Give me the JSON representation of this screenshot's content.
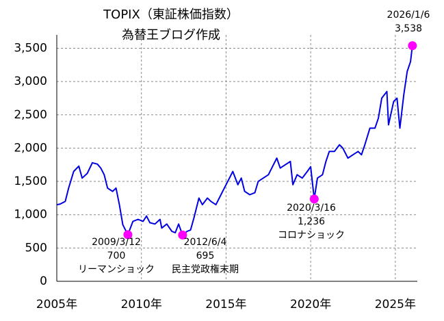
{
  "chart_data": {
    "type": "line",
    "title": "TOPIX（東証株価指数）",
    "subtitle": "為替王ブログ作成",
    "x": [
      2005.0,
      2005.2,
      2005.5,
      2005.7,
      2006.0,
      2006.3,
      2006.5,
      2006.8,
      2007.1,
      2007.4,
      2007.6,
      2007.8,
      2008.0,
      2008.3,
      2008.5,
      2008.7,
      2008.9,
      2009.2,
      2009.5,
      2009.8,
      2010.1,
      2010.3,
      2010.5,
      2010.8,
      2011.1,
      2011.2,
      2011.5,
      2011.8,
      2012.0,
      2012.2,
      2012.43,
      2012.7,
      2012.9,
      2013.1,
      2013.4,
      2013.6,
      2013.9,
      2014.1,
      2014.4,
      2014.7,
      2014.9,
      2015.2,
      2015.4,
      2015.7,
      2015.9,
      2016.1,
      2016.4,
      2016.7,
      2016.9,
      2017.2,
      2017.5,
      2017.8,
      2018.0,
      2018.2,
      2018.5,
      2018.8,
      2018.95,
      2019.2,
      2019.5,
      2019.8,
      2020.0,
      2020.21,
      2020.4,
      2020.7,
      2020.9,
      2021.1,
      2021.4,
      2021.7,
      2021.9,
      2022.2,
      2022.5,
      2022.8,
      2023.0,
      2023.2,
      2023.5,
      2023.8,
      2024.0,
      2024.2,
      2024.5,
      2024.6,
      2024.9,
      2025.1,
      2025.27,
      2025.5,
      2025.7,
      2025.9,
      2026.01
    ],
    "series": [
      {
        "name": "TOPIX",
        "color": "#0000e0",
        "values": [
          1150,
          1160,
          1200,
          1400,
          1650,
          1730,
          1550,
          1620,
          1780,
          1760,
          1700,
          1600,
          1400,
          1350,
          1400,
          1150,
          850,
          700,
          900,
          930,
          900,
          980,
          880,
          860,
          930,
          800,
          860,
          750,
          730,
          860,
          695,
          750,
          770,
          950,
          1250,
          1150,
          1250,
          1200,
          1150,
          1300,
          1400,
          1550,
          1650,
          1450,
          1550,
          1350,
          1300,
          1330,
          1500,
          1550,
          1600,
          1750,
          1850,
          1700,
          1750,
          1800,
          1450,
          1600,
          1550,
          1650,
          1720,
          1236,
          1550,
          1600,
          1800,
          1950,
          1950,
          2050,
          2000,
          1850,
          1900,
          1950,
          1900,
          2050,
          2300,
          2300,
          2450,
          2750,
          2850,
          2350,
          2700,
          2750,
          2300,
          2800,
          3150,
          3300,
          3538
        ]
      }
    ],
    "xlim": [
      2005,
      2026.3
    ],
    "xticks": [
      {
        "value": 2005,
        "label": "2005年"
      },
      {
        "value": 2010,
        "label": "2010年"
      },
      {
        "value": 2015,
        "label": "2015年"
      },
      {
        "value": 2020,
        "label": "2020年"
      },
      {
        "value": 2025,
        "label": "2025年"
      }
    ],
    "ylim": [
      0,
      3700
    ],
    "yticks": [
      0,
      500,
      {
        "value": 1000,
        "label": "1,000"
      },
      {
        "value": 1500,
        "label": "1,500"
      },
      {
        "value": 2000,
        "label": "2,000"
      },
      {
        "value": 2500,
        "label": "2,500"
      },
      {
        "value": 3000,
        "label": "3,000"
      },
      {
        "value": 3500,
        "label": "3,500"
      }
    ],
    "grid": true,
    "marker_color": "#ff00ff",
    "annotations": [
      {
        "x": 2009.2,
        "value": 700,
        "date": "2009/3/12",
        "label": "700",
        "note": "リーマンショック"
      },
      {
        "x": 2012.43,
        "value": 695,
        "date": "2012/6/4",
        "label": "695",
        "note": "民主党政権末期"
      },
      {
        "x": 2020.21,
        "value": 1236,
        "date": "2020/3/16",
        "label": "1,236",
        "note": "コロナショック"
      },
      {
        "x": 2026.01,
        "value": 3538,
        "date": "2026/1/6",
        "label": "3,538"
      }
    ]
  }
}
